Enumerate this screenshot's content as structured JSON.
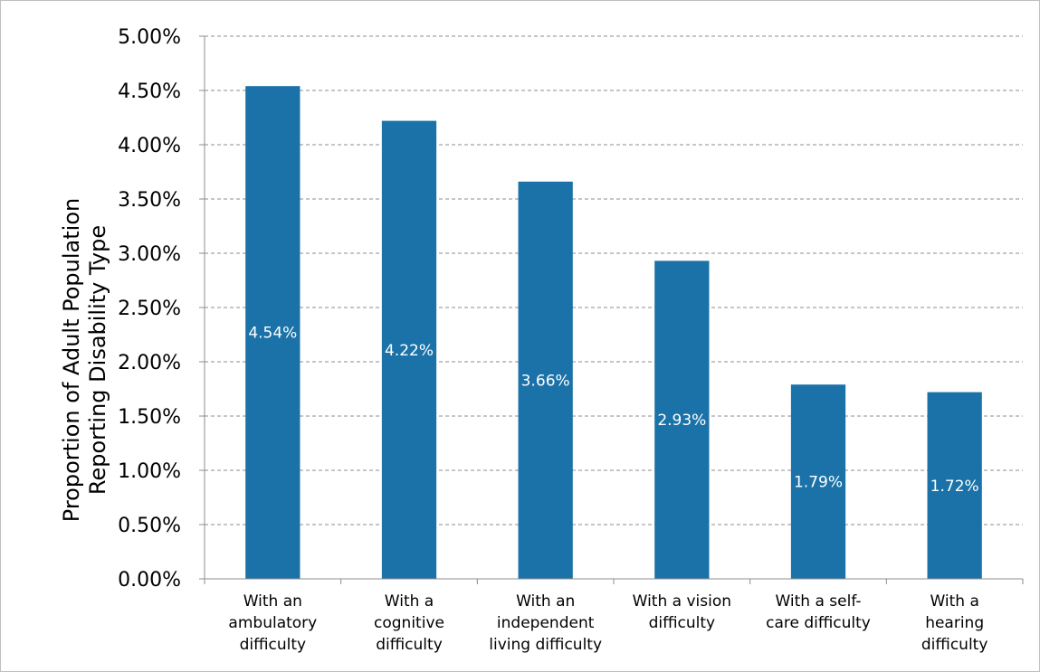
{
  "chart_data": {
    "type": "bar",
    "title": "",
    "xlabel": "",
    "ylabel_lines": [
      "Proportion of Adult Population",
      "Reporting Disability Type"
    ],
    "ylim": [
      0,
      5
    ],
    "yticks": [
      "0.00%",
      "0.50%",
      "1.00%",
      "1.50%",
      "2.00%",
      "2.50%",
      "3.00%",
      "3.50%",
      "4.00%",
      "4.50%",
      "5.00%"
    ],
    "ytick_step": 0.5,
    "grid": true,
    "categories": [
      [
        "With an",
        "ambulatory",
        "difficulty"
      ],
      [
        "With a",
        "cognitive",
        "difficulty"
      ],
      [
        "With an",
        "independent",
        "living difficulty"
      ],
      [
        "With a vision",
        "difficulty"
      ],
      [
        "With a self-",
        "care difficulty"
      ],
      [
        "With a",
        "hearing",
        "difficulty"
      ]
    ],
    "values": [
      4.54,
      4.22,
      3.66,
      2.93,
      1.79,
      1.72
    ],
    "data_labels": [
      "4.54%",
      "4.22%",
      "3.66%",
      "2.93%",
      "1.79%",
      "1.72%"
    ],
    "bar_color": "#1a72a8"
  }
}
